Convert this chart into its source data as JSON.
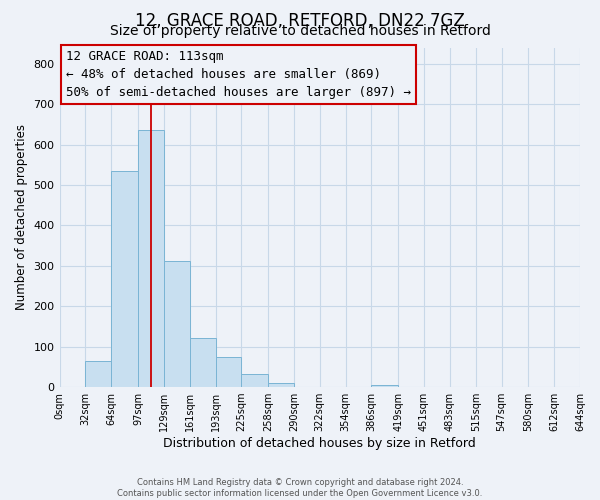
{
  "title": "12, GRACE ROAD, RETFORD, DN22 7GZ",
  "subtitle": "Size of property relative to detached houses in Retford",
  "xlabel": "Distribution of detached houses by size in Retford",
  "ylabel": "Number of detached properties",
  "footer_lines": [
    "Contains HM Land Registry data © Crown copyright and database right 2024.",
    "Contains public sector information licensed under the Open Government Licence v3.0."
  ],
  "bar_edges": [
    0,
    32,
    64,
    97,
    129,
    161,
    193,
    225,
    258,
    290,
    322,
    354,
    386,
    419,
    451,
    483,
    515,
    547,
    580,
    612,
    644
  ],
  "bar_heights": [
    0,
    65,
    535,
    635,
    312,
    122,
    75,
    32,
    10,
    0,
    0,
    0,
    5,
    0,
    0,
    0,
    0,
    0,
    0,
    0
  ],
  "tick_labels": [
    "0sqm",
    "32sqm",
    "64sqm",
    "97sqm",
    "129sqm",
    "161sqm",
    "193sqm",
    "225sqm",
    "258sqm",
    "290sqm",
    "322sqm",
    "354sqm",
    "386sqm",
    "419sqm",
    "451sqm",
    "483sqm",
    "515sqm",
    "547sqm",
    "580sqm",
    "612sqm",
    "644sqm"
  ],
  "bar_color": "#c8dff0",
  "bar_edge_color": "#7ab4d4",
  "vline_x": 113,
  "vline_color": "#cc0000",
  "annotation_line1": "12 GRACE ROAD: 113sqm",
  "annotation_line2": "← 48% of detached houses are smaller (869)",
  "annotation_line3": "50% of semi-detached houses are larger (897) →",
  "ylim": [
    0,
    840
  ],
  "yticks": [
    0,
    100,
    200,
    300,
    400,
    500,
    600,
    700,
    800
  ],
  "grid_color": "#c8d8e8",
  "background_color": "#eef2f8",
  "title_fontsize": 12,
  "subtitle_fontsize": 10,
  "tick_fontsize": 7,
  "ylabel_fontsize": 8.5,
  "xlabel_fontsize": 9,
  "annotation_fontsize": 9
}
